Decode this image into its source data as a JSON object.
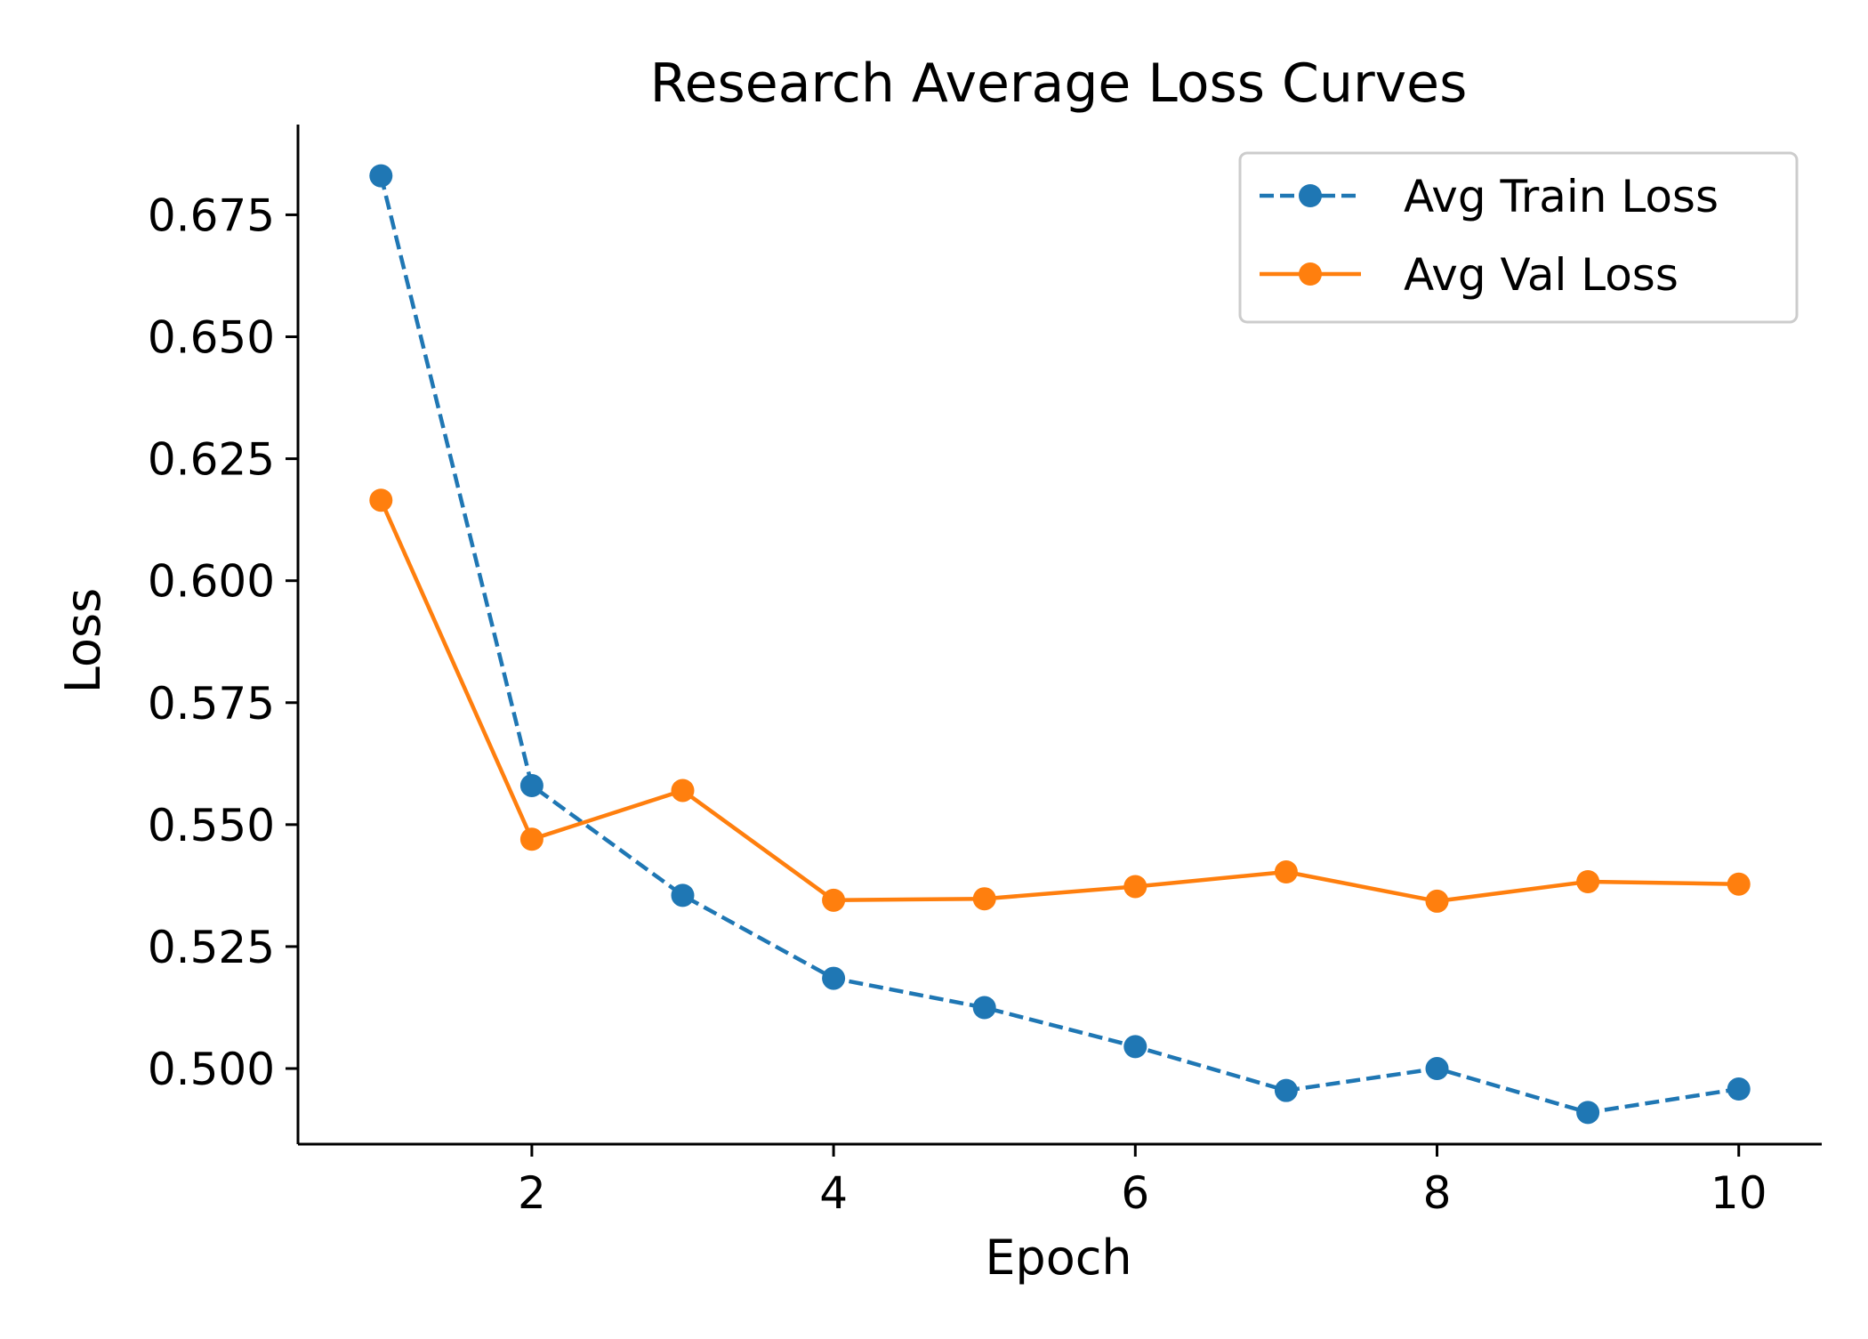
{
  "chart_data": {
    "type": "line",
    "title": "Research Average Loss Curves",
    "xlabel": "Epoch",
    "ylabel": "Loss",
    "xlim": [
      0.45,
      10.55
    ],
    "ylim": [
      0.4845,
      0.6935
    ],
    "x_ticks": [
      2,
      4,
      6,
      8,
      10
    ],
    "x_tick_labels": [
      "2",
      "4",
      "6",
      "8",
      "10"
    ],
    "y_ticks": [
      0.5,
      0.525,
      0.55,
      0.575,
      0.6,
      0.625,
      0.65,
      0.675
    ],
    "y_tick_labels": [
      "0.500",
      "0.525",
      "0.550",
      "0.575",
      "0.600",
      "0.625",
      "0.650",
      "0.675"
    ],
    "grid": false,
    "legend_position": "top-right",
    "x": [
      1,
      2,
      3,
      4,
      5,
      6,
      7,
      8,
      9,
      10
    ],
    "series": [
      {
        "name": "Avg Train Loss",
        "color": "#1f77b4",
        "line_style": "dashed",
        "marker": "circle",
        "values": [
          0.683,
          0.558,
          0.5355,
          0.5185,
          0.5125,
          0.5045,
          0.4955,
          0.5,
          0.491,
          0.4958
        ]
      },
      {
        "name": "Avg Val Loss",
        "color": "#ff7f0e",
        "line_style": "solid",
        "marker": "circle",
        "values": [
          0.6165,
          0.547,
          0.557,
          0.5345,
          0.5348,
          0.5373,
          0.5403,
          0.5343,
          0.5383,
          0.5378
        ]
      }
    ]
  }
}
